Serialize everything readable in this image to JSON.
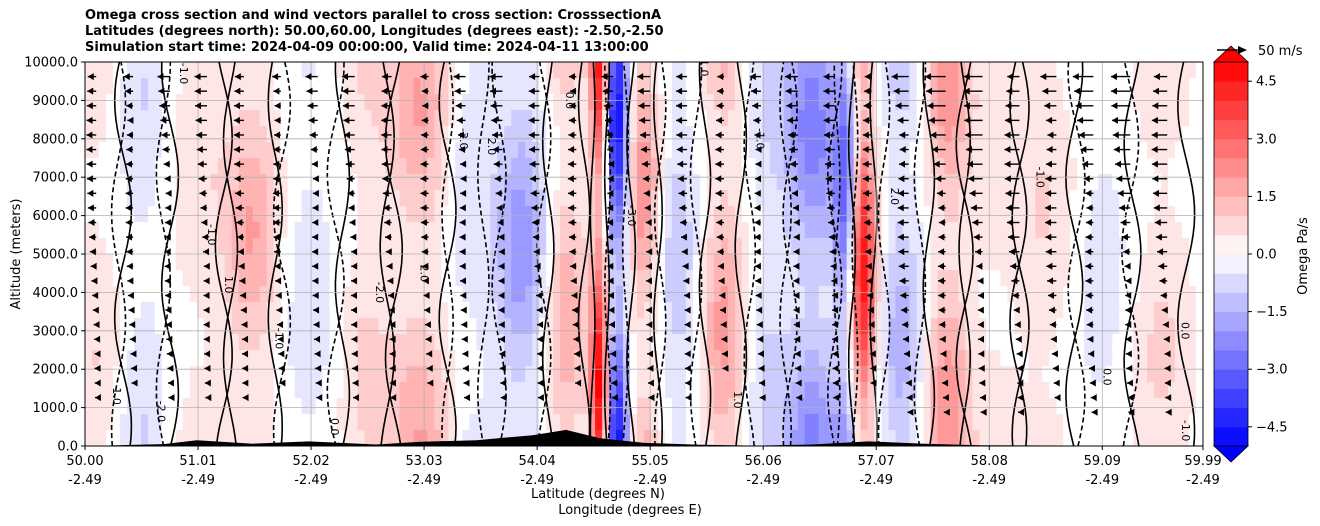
{
  "chart_data": {
    "type": "heatmap",
    "subtype": "filled-contour cross section with wind vectors",
    "title_lines": [
      "Omega cross section and wind vectors parallel to cross section: CrosssectionA",
      "Latitudes (degrees north): 50.00,60.00, Longitudes (degrees east): -2.50,-2.50",
      "Simulation start time: 2024-04-09 00:00:00, Valid time: 2024-04-11 13:00:00"
    ],
    "ylabel": "Altitude (meters)",
    "xlabel_lines": [
      "Latitude (degrees N)",
      "Longitude (degrees E)"
    ],
    "xlim": [
      50.0,
      59.99
    ],
    "ylim": [
      0,
      10000
    ],
    "grid": true,
    "x_ticks": [
      {
        "lat": "50.00",
        "lon": "-2.49",
        "value": 50.0
      },
      {
        "lat": "51.01",
        "lon": "-2.49",
        "value": 51.01
      },
      {
        "lat": "52.02",
        "lon": "-2.49",
        "value": 52.02
      },
      {
        "lat": "53.03",
        "lon": "-2.49",
        "value": 53.03
      },
      {
        "lat": "54.04",
        "lon": "-2.49",
        "value": 54.04
      },
      {
        "lat": "55.05",
        "lon": "-2.49",
        "value": 55.05
      },
      {
        "lat": "56.06",
        "lon": "-2.49",
        "value": 56.06
      },
      {
        "lat": "57.07",
        "lon": "-2.49",
        "value": 57.07
      },
      {
        "lat": "58.08",
        "lon": "-2.49",
        "value": 58.08
      },
      {
        "lat": "59.09",
        "lon": "-2.49",
        "value": 59.09
      },
      {
        "lat": "59.99",
        "lon": "-2.49",
        "value": 59.99
      }
    ],
    "y_ticks": [
      {
        "label": "0.0",
        "value": 0
      },
      {
        "label": "1000.0",
        "value": 1000
      },
      {
        "label": "2000.0",
        "value": 2000
      },
      {
        "label": "3000.0",
        "value": 3000
      },
      {
        "label": "4000.0",
        "value": 4000
      },
      {
        "label": "5000.0",
        "value": 5000
      },
      {
        "label": "6000.0",
        "value": 6000
      },
      {
        "label": "7000.0",
        "value": 7000
      },
      {
        "label": "8000.0",
        "value": 8000
      },
      {
        "label": "9000.0",
        "value": 9000
      },
      {
        "label": "10000.0",
        "value": 10000
      }
    ],
    "colorbar": {
      "label": "Omega Pa/s",
      "range": [
        -5.0,
        5.0
      ],
      "ticks": [
        {
          "label": "4.5",
          "value": 4.5
        },
        {
          "label": "3.0",
          "value": 3.0
        },
        {
          "label": "1.5",
          "value": 1.5
        },
        {
          "label": "0.0",
          "value": 0.0
        },
        {
          "label": "−1.5",
          "value": -1.5
        },
        {
          "label": "−3.0",
          "value": -3.0
        },
        {
          "label": "−4.5",
          "value": -4.5
        }
      ],
      "extend": "both",
      "cmap": "bwr"
    },
    "vector_key": {
      "label": "50 m/s",
      "value": 50
    },
    "contour_levels": [
      -2.0,
      -1.0,
      0.0,
      1.0,
      2.0
    ],
    "omega_bands": [
      {
        "center": 50.1,
        "width": 0.3,
        "value": 0.8
      },
      {
        "center": 50.5,
        "width": 0.25,
        "value": -0.9
      },
      {
        "center": 51.0,
        "width": 0.3,
        "value": 0.7
      },
      {
        "center": 51.5,
        "width": 0.25,
        "value": 1.8
      },
      {
        "center": 52.0,
        "width": 0.3,
        "value": -0.6
      },
      {
        "center": 52.5,
        "width": 0.25,
        "value": 0.9
      },
      {
        "center": 53.0,
        "width": 0.3,
        "value": 1.8
      },
      {
        "center": 53.4,
        "width": 0.2,
        "value": -0.8
      },
      {
        "center": 53.9,
        "width": 0.25,
        "value": -2.2
      },
      {
        "center": 54.3,
        "width": 0.2,
        "value": 1.8
      },
      {
        "center": 54.6,
        "width": 0.08,
        "value": 5.0
      },
      {
        "center": 54.75,
        "width": 0.1,
        "value": -5.0
      },
      {
        "center": 55.0,
        "width": 0.15,
        "value": 2.2
      },
      {
        "center": 55.3,
        "width": 0.2,
        "value": -1.2
      },
      {
        "center": 55.7,
        "width": 0.2,
        "value": 2.0
      },
      {
        "center": 56.1,
        "width": 0.2,
        "value": -0.9
      },
      {
        "center": 56.5,
        "width": 0.25,
        "value": -2.6
      },
      {
        "center": 56.8,
        "width": 0.1,
        "value": -3.2
      },
      {
        "center": 56.95,
        "width": 0.12,
        "value": 5.0
      },
      {
        "center": 57.3,
        "width": 0.2,
        "value": -1.6
      },
      {
        "center": 57.7,
        "width": 0.2,
        "value": 2.2
      },
      {
        "center": 58.1,
        "width": 0.3,
        "value": 0.5
      },
      {
        "center": 58.6,
        "width": 0.3,
        "value": 0.8
      },
      {
        "center": 59.1,
        "width": 0.3,
        "value": -0.6
      },
      {
        "center": 59.6,
        "width": 0.3,
        "value": 0.9
      }
    ],
    "terrain": [
      {
        "lat": 50.0,
        "alt": 0
      },
      {
        "lat": 50.7,
        "alt": 50
      },
      {
        "lat": 51.0,
        "alt": 150
      },
      {
        "lat": 51.5,
        "alt": 60
      },
      {
        "lat": 52.0,
        "alt": 120
      },
      {
        "lat": 52.6,
        "alt": 40
      },
      {
        "lat": 53.0,
        "alt": 110
      },
      {
        "lat": 53.5,
        "alt": 150
      },
      {
        "lat": 54.0,
        "alt": 280
      },
      {
        "lat": 54.3,
        "alt": 420
      },
      {
        "lat": 54.6,
        "alt": 200
      },
      {
        "lat": 55.0,
        "alt": 80
      },
      {
        "lat": 55.5,
        "alt": 30
      },
      {
        "lat": 56.0,
        "alt": 10
      },
      {
        "lat": 56.5,
        "alt": 40
      },
      {
        "lat": 57.0,
        "alt": 120
      },
      {
        "lat": 57.5,
        "alt": 60
      },
      {
        "lat": 58.0,
        "alt": 20
      },
      {
        "lat": 59.99,
        "alt": 0
      }
    ],
    "wind_vectors_sample": [
      {
        "lat": 57.5,
        "alt": 9500,
        "u": -25
      },
      {
        "lat": 58.5,
        "alt": 9500,
        "u": -20
      },
      {
        "lat": 59.5,
        "alt": 9000,
        "u": -20
      },
      {
        "lat": 53.5,
        "alt": 6000,
        "u": -20
      },
      {
        "lat": 52.5,
        "alt": 7000,
        "u": -15
      },
      {
        "lat": 51.5,
        "alt": 4000,
        "u": -10
      }
    ],
    "contour_labels": [
      {
        "text": "1.0",
        "lat": 50.25,
        "alt": 1300
      },
      {
        "text": "-1.0",
        "lat": 50.85,
        "alt": 9700
      },
      {
        "text": "-2.0",
        "lat": 50.65,
        "alt": 900
      },
      {
        "text": "-1.0",
        "lat": 51.1,
        "alt": 5500
      },
      {
        "text": "1.0",
        "lat": 51.25,
        "alt": 4200
      },
      {
        "text": "-2.0",
        "lat": 52.6,
        "alt": 4000
      },
      {
        "text": "2.0",
        "lat": 53.0,
        "alt": 4500
      },
      {
        "text": "-1.0",
        "lat": 51.7,
        "alt": 2800
      },
      {
        "text": "0.0",
        "lat": 52.2,
        "alt": 500
      },
      {
        "text": "-2.0",
        "lat": 53.35,
        "alt": 8000
      },
      {
        "text": "2.0",
        "lat": 53.6,
        "alt": 7800
      },
      {
        "text": "0.0",
        "lat": 54.3,
        "alt": 9000
      },
      {
        "text": "-3.0",
        "lat": 54.85,
        "alt": 6000
      },
      {
        "text": "-1.0",
        "lat": 56.0,
        "alt": 8000
      },
      {
        "text": "2.0",
        "lat": 57.2,
        "alt": 6500
      },
      {
        "text": "-1.0",
        "lat": 58.5,
        "alt": 7000
      },
      {
        "text": "0.0",
        "lat": 59.1,
        "alt": 1800
      },
      {
        "text": "0.0",
        "lat": 59.8,
        "alt": 3000
      },
      {
        "text": "1.0",
        "lat": 55.8,
        "alt": 1200
      },
      {
        "text": "-1.0",
        "lat": 55.5,
        "alt": 9900
      },
      {
        "text": "-1.0",
        "lat": 59.8,
        "alt": 400
      }
    ]
  }
}
